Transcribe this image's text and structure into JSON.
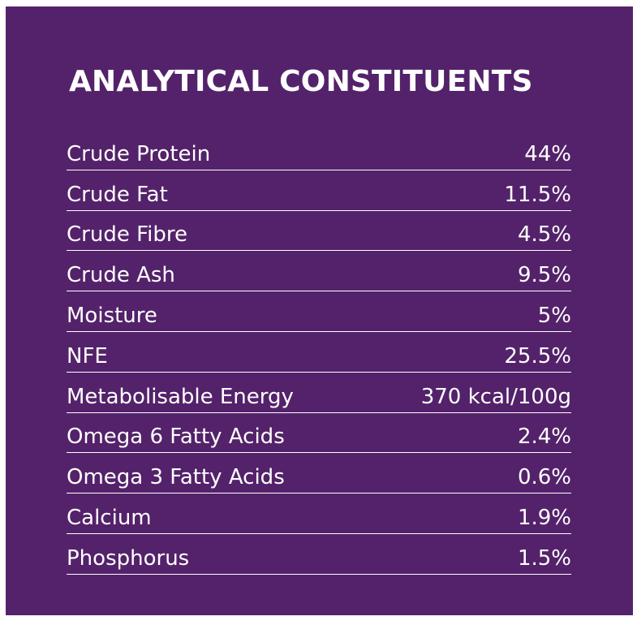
{
  "title": "ANALYTICAL CONSTITUENTS",
  "colors": {
    "panel_background": "#54226a",
    "text": "#ffffff",
    "divider": "#ffffff"
  },
  "rows": [
    {
      "label": "Crude Protein",
      "value": "44%"
    },
    {
      "label": "Crude Fat",
      "value": "11.5%"
    },
    {
      "label": "Crude Fibre",
      "value": "4.5%"
    },
    {
      "label": "Crude Ash",
      "value": "9.5%"
    },
    {
      "label": "Moisture",
      "value": "5%"
    },
    {
      "label": "NFE",
      "value": "25.5%"
    },
    {
      "label": "Metabolisable Energy",
      "value": "370 kcal/100g"
    },
    {
      "label": "Omega 6 Fatty Acids",
      "value": "2.4%"
    },
    {
      "label": "Omega 3 Fatty Acids",
      "value": "0.6%"
    },
    {
      "label": "Calcium",
      "value": "1.9%"
    },
    {
      "label": "Phosphorus",
      "value": "1.5%"
    }
  ]
}
